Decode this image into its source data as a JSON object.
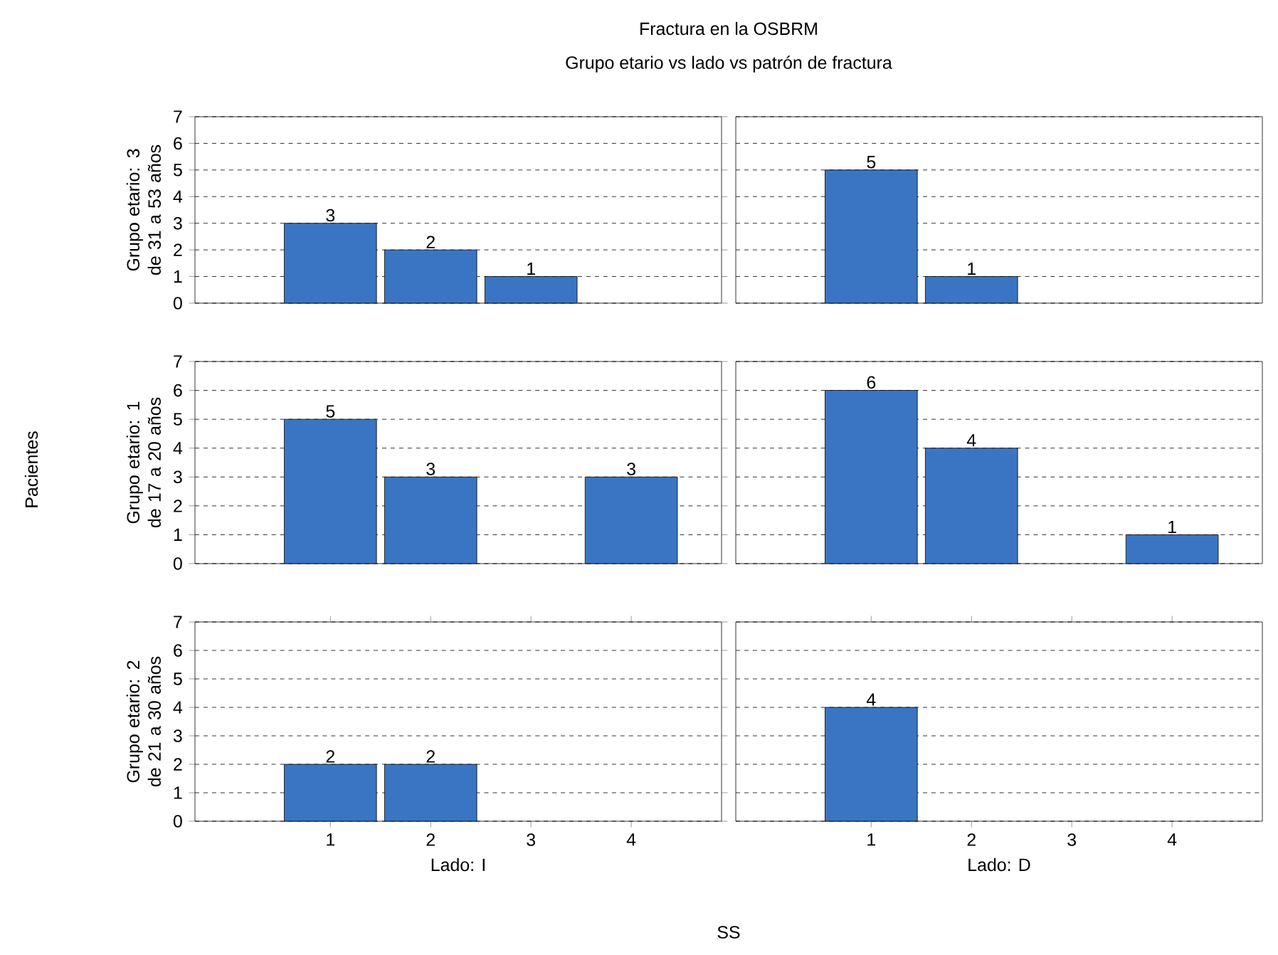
{
  "chart_data": [
    {
      "type": "bar",
      "title": "Fractura en la OSBRM",
      "subtitle": "Grupo etario vs lado vs patrón de fractura",
      "annotations": [
        "Pacientes",
        "SS"
      ],
      "ylabel": "Grupo etario: 3 de 31 a 53 años",
      "categories": [
        "1",
        "2",
        "3",
        "4"
      ],
      "values": [
        3,
        2,
        1,
        null
      ],
      "color": "#3a75c4",
      "ylim": [
        0,
        7
      ],
      "yticks": [
        0,
        1,
        2,
        3,
        4,
        5,
        6,
        7
      ],
      "grid": "y",
      "data_labels": true,
      "tick_labels": "y"
    },
    {
      "type": "bar",
      "categories": [
        "1",
        "2",
        "3",
        "4"
      ],
      "values": [
        5,
        1,
        null,
        null
      ],
      "color": "#3a75c4",
      "ylim": [
        0,
        7
      ],
      "yticks": [
        0,
        1,
        2,
        3,
        4,
        5,
        6,
        7
      ],
      "grid": "y",
      "data_labels": true,
      "tick_labels": false
    },
    {
      "type": "bar",
      "ylabel": "Grupo etario: 1 de 17 a 20 años",
      "categories": [
        "1",
        "2",
        "3",
        "4"
      ],
      "values": [
        5,
        3,
        null,
        3
      ],
      "color": "#3a75c4",
      "ylim": [
        0,
        7
      ],
      "yticks": [
        0,
        1,
        2,
        3,
        4,
        5,
        6,
        7
      ],
      "grid": "y",
      "data_labels": true,
      "tick_labels": "y"
    },
    {
      "type": "bar",
      "categories": [
        "1",
        "2",
        "3",
        "4"
      ],
      "values": [
        6,
        4,
        null,
        1
      ],
      "color": "#3a75c4",
      "ylim": [
        0,
        7
      ],
      "yticks": [
        0,
        1,
        2,
        3,
        4,
        5,
        6,
        7
      ],
      "grid": "y",
      "data_labels": true,
      "tick_labels": false
    },
    {
      "type": "bar",
      "ylabel": "Grupo etario: 2 de 21 a 30 años",
      "xlabel": "Lado: I",
      "categories": [
        "1",
        "2",
        "3",
        "4"
      ],
      "values": [
        2,
        2,
        null,
        null
      ],
      "color": "#3a75c4",
      "ylim": [
        0,
        7
      ],
      "yticks": [
        0,
        1,
        2,
        3,
        4,
        5,
        6,
        7
      ],
      "grid": "y",
      "data_labels": true
    },
    {
      "type": "bar",
      "xlabel": "Lado: D",
      "categories": [
        "1",
        "2",
        "3",
        "4"
      ],
      "values": [
        4,
        null,
        null,
        null
      ],
      "color": "#3a75c4",
      "ylim": [
        0,
        7
      ],
      "yticks": [
        0,
        1,
        2,
        3,
        4,
        5,
        6,
        7
      ],
      "grid": "y",
      "data_labels": true,
      "tick_labels": "x"
    }
  ]
}
